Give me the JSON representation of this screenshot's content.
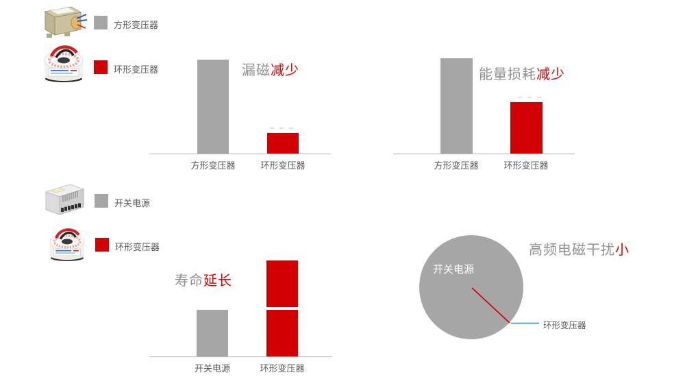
{
  "colors": {
    "bar_gray": "#a6a6a6",
    "bar_red": "#d20000",
    "title_gray": "#8f8f8f",
    "title_red": "#e60000",
    "axis_gray": "#b3b3b3",
    "label_gray": "#595959",
    "leader_blue": "#3a85c6",
    "pie_inner_label_white": "#ffffff"
  },
  "legend_top": {
    "items": [
      {
        "label": "方形变压器",
        "swatch_color": "#a6a6a6",
        "image": "square-transformer-photo"
      },
      {
        "label": "环形变压器",
        "swatch_color": "#d20000",
        "image": "toroidal-transformer-photo"
      }
    ]
  },
  "legend_bottom": {
    "items": [
      {
        "label": "开关电源",
        "swatch_color": "#a6a6a6",
        "image": "switching-power-supply-photo"
      },
      {
        "label": "环形变压器",
        "swatch_color": "#d20000",
        "image": "toroidal-transformer-photo"
      }
    ]
  },
  "chart_data": [
    {
      "type": "bar",
      "title": "漏磁减少",
      "title_parts": {
        "gray": "漏磁",
        "red": "减少"
      },
      "categories": [
        "方形变压器",
        "环形变压器"
      ],
      "values": [
        100,
        22
      ],
      "colors": [
        "#a6a6a6",
        "#d20000"
      ],
      "ylim": [
        0,
        100
      ],
      "axis": "baseline only, no ticks, no gridlines",
      "note": "relative units; gray reference bar = 100"
    },
    {
      "type": "bar",
      "title": "能量损耗减少",
      "title_parts": {
        "gray": "能量损耗",
        "red": "减少"
      },
      "categories": [
        "方形变压器",
        "环形变压器"
      ],
      "values": [
        100,
        54
      ],
      "colors": [
        "#a6a6a6",
        "#d20000"
      ],
      "ylim": [
        0,
        100
      ],
      "axis": "baseline only, no ticks, no gridlines",
      "note": "faint erased label marks visible just above red bar"
    },
    {
      "type": "bar",
      "title": "寿命延长",
      "title_parts": {
        "gray": "寿命",
        "red": "延长"
      },
      "categories": [
        "开关电源",
        "环形变压器"
      ],
      "values": [
        100,
        200
      ],
      "red_segments": [
        100,
        100
      ],
      "colors": [
        "#a6a6a6",
        "#d20000"
      ],
      "ylim": [
        0,
        200
      ],
      "axis": "baseline only, no ticks, no gridlines",
      "note": "red bar drawn as two stacked segments separated by a thin white gap"
    },
    {
      "type": "pie",
      "title": "高频电磁干扰小",
      "title_parts": {
        "gray": "高频电磁干扰",
        "red": "小"
      },
      "slices": [
        {
          "label": "开关电源",
          "value": 99,
          "color": "#a6a6a6"
        },
        {
          "label": "环形变压器",
          "value": 1,
          "color": "#d20000"
        }
      ],
      "leader_color": "#3a85c6",
      "note": "tiny red slice rendered as a thin radius line at lower-right; blue leader line to outside label"
    }
  ]
}
